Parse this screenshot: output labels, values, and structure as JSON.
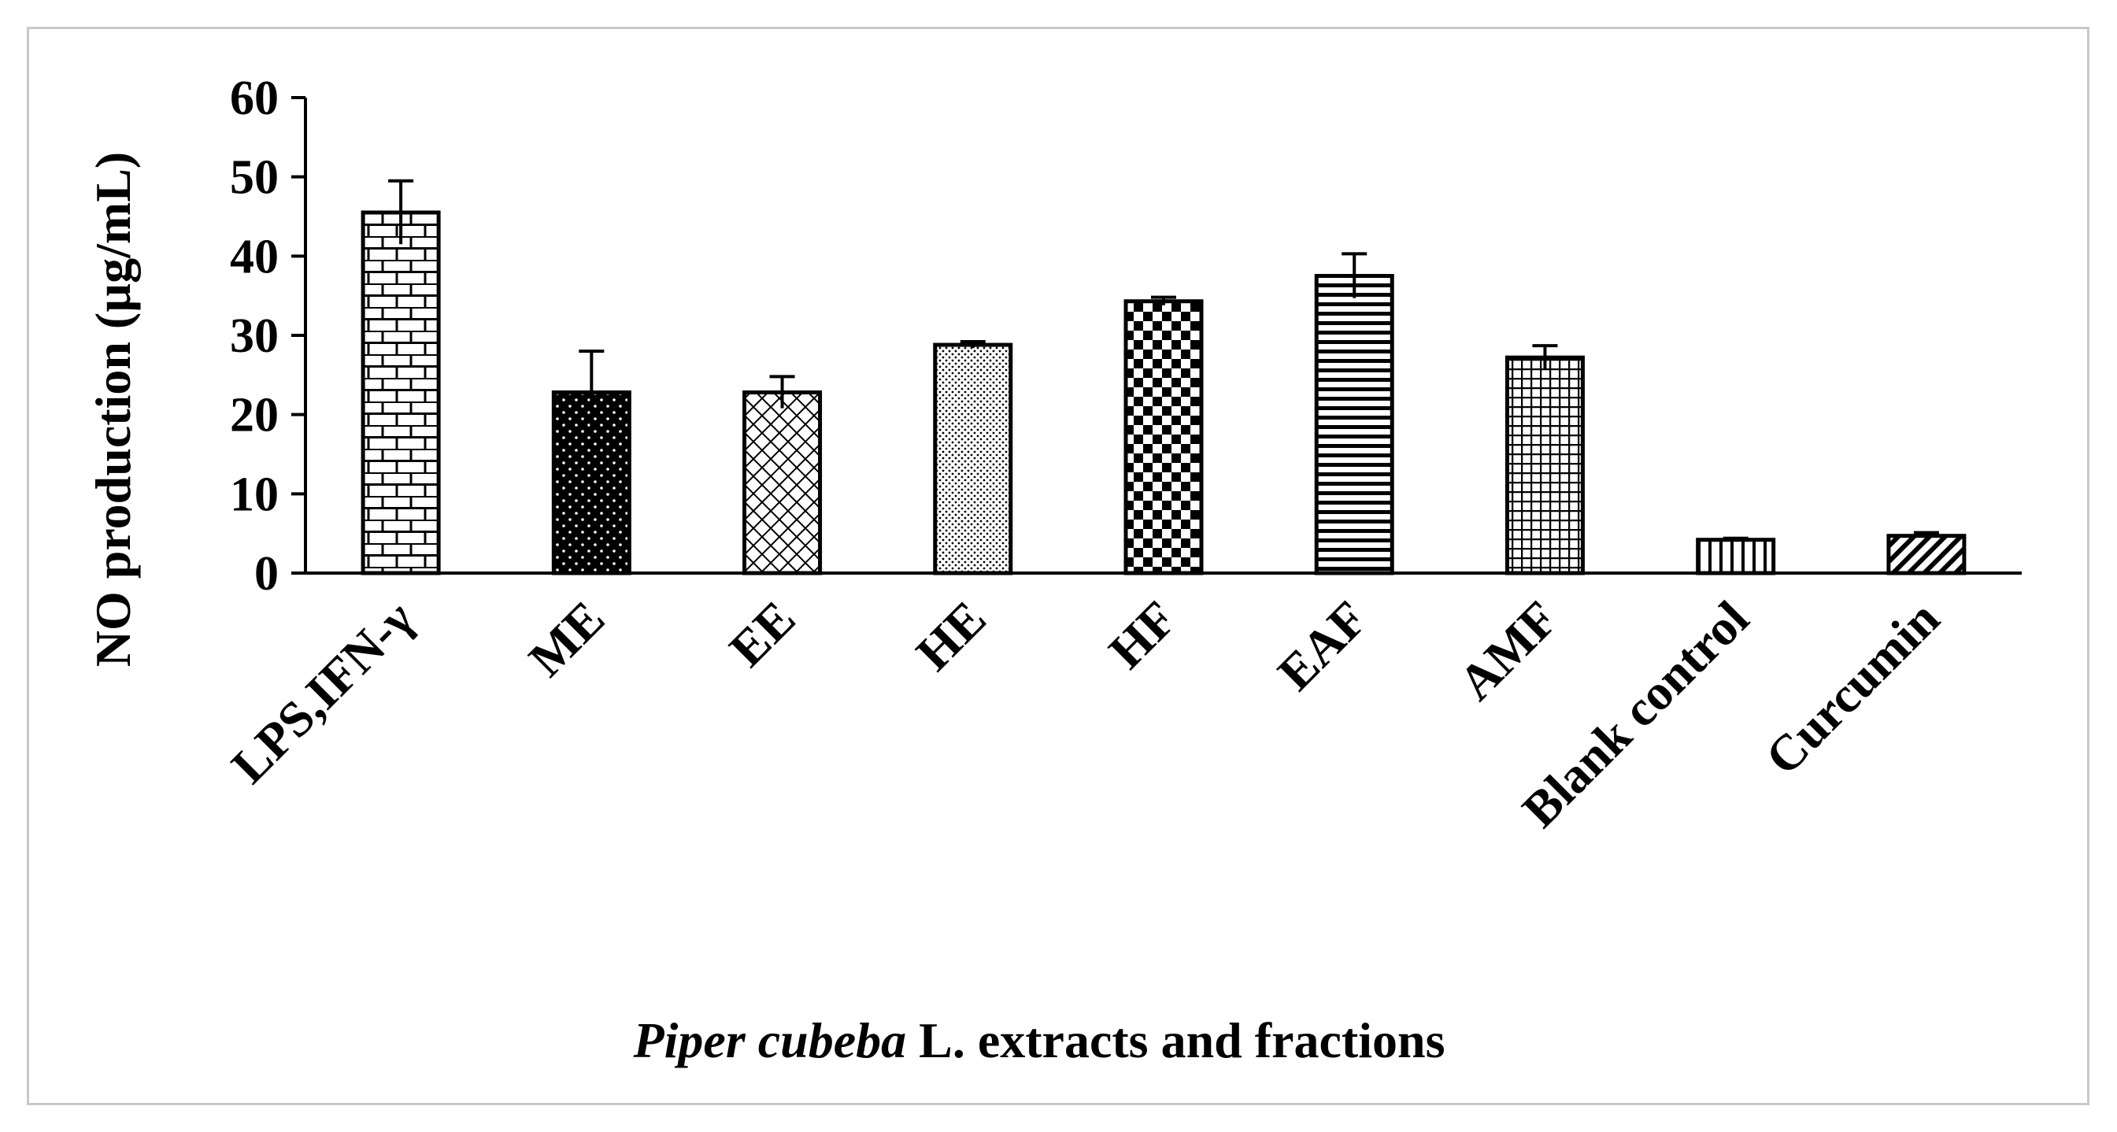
{
  "chart_data": {
    "type": "bar",
    "title": "",
    "xlabel_italic": "Piper cubeba",
    "xlabel_rest": " L. extracts and fractions",
    "ylabel": "NO production (µg/mL)",
    "ylim": [
      0,
      60
    ],
    "yticks": [
      0,
      10,
      20,
      30,
      40,
      50,
      60
    ],
    "grid": false,
    "legend": "none",
    "categories": [
      "LPS,IFN-γ",
      "ME",
      "EE",
      "HE",
      "HF",
      "EAF",
      "AMF",
      "Blank control",
      "Curcumin"
    ],
    "values": [
      45.5,
      22.8,
      22.8,
      28.8,
      34.3,
      37.5,
      27.2,
      4.2,
      4.7
    ],
    "errors": [
      4.0,
      5.2,
      2.0,
      0.4,
      0.5,
      2.8,
      1.5,
      0.2,
      0.4
    ],
    "patterns": [
      "brick",
      "dots-dark",
      "crosshatch",
      "dots-light",
      "checker",
      "horizontal",
      "grid",
      "vertical",
      "diagonal"
    ]
  }
}
